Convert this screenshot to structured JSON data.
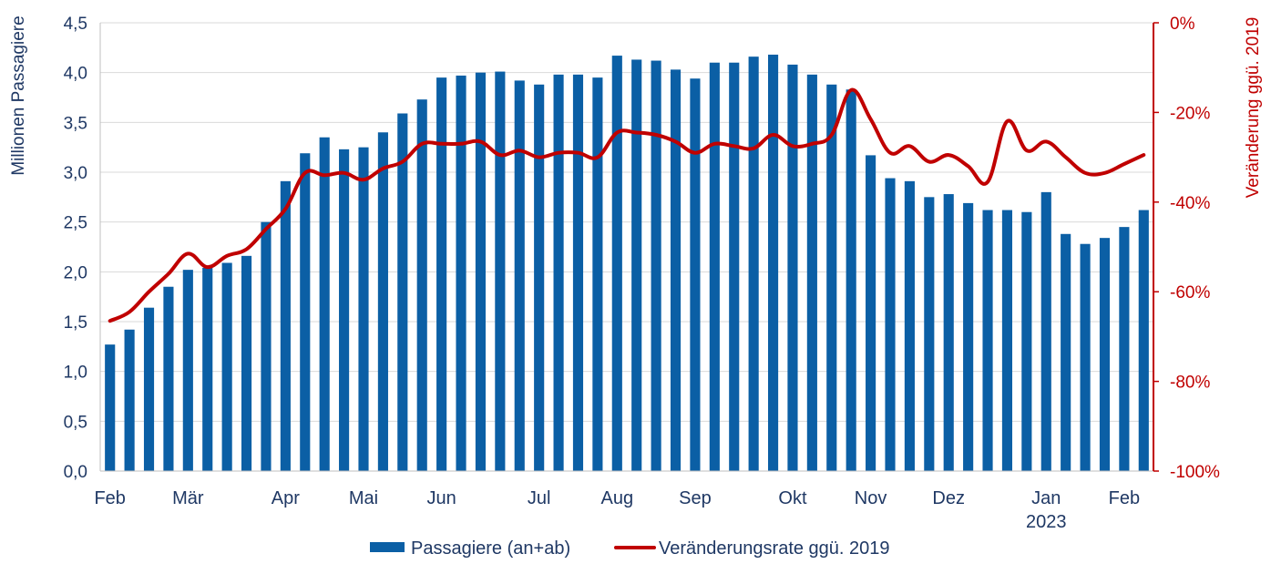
{
  "chart_data": {
    "type": "bar",
    "title": "",
    "ylabel": "Millionen Passagiere",
    "y2label": "Veränderung ggü. 2019",
    "ylim": [
      0,
      4.5
    ],
    "y2lim": [
      -100,
      0
    ],
    "yticks": [
      "0,0",
      "0,5",
      "1,0",
      "1,5",
      "2,0",
      "2,5",
      "3,0",
      "3,5",
      "4,0",
      "4,5"
    ],
    "y2ticks": [
      "-100%",
      "-80%",
      "-60%",
      "-40%",
      "-20%",
      "0%"
    ],
    "x_labels": [
      {
        "label": "Feb",
        "index": 0
      },
      {
        "label": "Mär",
        "index": 4
      },
      {
        "label": "Apr",
        "index": 9
      },
      {
        "label": "Mai",
        "index": 13
      },
      {
        "label": "Jun",
        "index": 17
      },
      {
        "label": "Jul",
        "index": 22
      },
      {
        "label": "Aug",
        "index": 26
      },
      {
        "label": "Sep",
        "index": 30
      },
      {
        "label": "Okt",
        "index": 35
      },
      {
        "label": "Nov",
        "index": 39
      },
      {
        "label": "Dez",
        "index": 43
      },
      {
        "label": "Jan",
        "index": 48
      },
      {
        "label": "Feb",
        "index": 52
      }
    ],
    "year_label": {
      "label": "2023",
      "index": 48
    },
    "grid": true,
    "legend_position": "bottom",
    "series": [
      {
        "name": "Passagiere (an+ab)",
        "type": "bar",
        "axis": "left",
        "color": "#0b5fa5",
        "values": [
          1.27,
          1.42,
          1.64,
          1.85,
          2.02,
          2.04,
          2.09,
          2.16,
          2.5,
          2.91,
          3.19,
          3.35,
          3.23,
          3.25,
          3.4,
          3.59,
          3.73,
          3.95,
          3.97,
          4.0,
          4.01,
          3.92,
          3.88,
          3.98,
          3.98,
          3.95,
          4.17,
          4.13,
          4.12,
          4.03,
          3.94,
          4.1,
          4.1,
          4.16,
          4.18,
          4.08,
          3.98,
          3.88,
          3.83,
          3.17,
          2.94,
          2.91,
          2.75,
          2.78,
          2.69,
          2.62,
          2.62,
          2.6,
          2.8,
          2.38,
          2.28,
          2.34,
          2.45,
          2.62
        ]
      },
      {
        "name": "Veränderungsrate ggü. 2019",
        "type": "line",
        "axis": "right",
        "color": "#c00000",
        "values": [
          -66.5,
          -64.5,
          -60,
          -56,
          -51.5,
          -54.5,
          -52,
          -50.5,
          -46,
          -41.5,
          -33.5,
          -34,
          -33.5,
          -35,
          -32.5,
          -31,
          -27,
          -27,
          -27,
          -26.5,
          -29.5,
          -28.5,
          -30,
          -29,
          -29,
          -30,
          -24.5,
          -24.5,
          -25,
          -26.5,
          -29,
          -27,
          -27.5,
          -28,
          -25,
          -27.5,
          -27,
          -25,
          -15,
          -21.5,
          -29,
          -27.5,
          -31,
          -29.5,
          -32,
          -35.5,
          -22,
          -28.5,
          -26.5,
          -30,
          -33.5,
          -33.5,
          -31.5,
          -29.5
        ]
      }
    ]
  }
}
